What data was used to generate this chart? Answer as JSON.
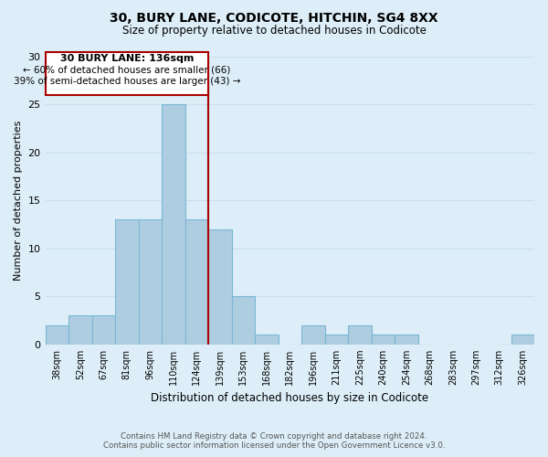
{
  "title": "30, BURY LANE, CODICOTE, HITCHIN, SG4 8XX",
  "subtitle": "Size of property relative to detached houses in Codicote",
  "xlabel": "Distribution of detached houses by size in Codicote",
  "ylabel": "Number of detached properties",
  "footer_line1": "Contains HM Land Registry data © Crown copyright and database right 2024.",
  "footer_line2": "Contains public sector information licensed under the Open Government Licence v3.0.",
  "categories": [
    "38sqm",
    "52sqm",
    "67sqm",
    "81sqm",
    "96sqm",
    "110sqm",
    "124sqm",
    "139sqm",
    "153sqm",
    "168sqm",
    "182sqm",
    "196sqm",
    "211sqm",
    "225sqm",
    "240sqm",
    "254sqm",
    "268sqm",
    "283sqm",
    "297sqm",
    "312sqm",
    "326sqm"
  ],
  "values": [
    2,
    3,
    3,
    13,
    13,
    25,
    13,
    12,
    5,
    1,
    0,
    2,
    1,
    2,
    1,
    1,
    0,
    0,
    0,
    0,
    1
  ],
  "bar_color": "#aecde1",
  "bar_edge_color": "#7ab8d4",
  "grid_color": "#c8dfee",
  "bg_color": "#ddeef8",
  "property_line_label": "30 BURY LANE: 136sqm",
  "annotation_line2": "← 60% of detached houses are smaller (66)",
  "annotation_line3": "39% of semi-detached houses are larger (43) →",
  "annotation_box_edge": "#aa0000",
  "annotation_line_color": "#aa0000",
  "ylim": [
    0,
    30
  ],
  "yticks": [
    0,
    5,
    10,
    15,
    20,
    25,
    30
  ]
}
